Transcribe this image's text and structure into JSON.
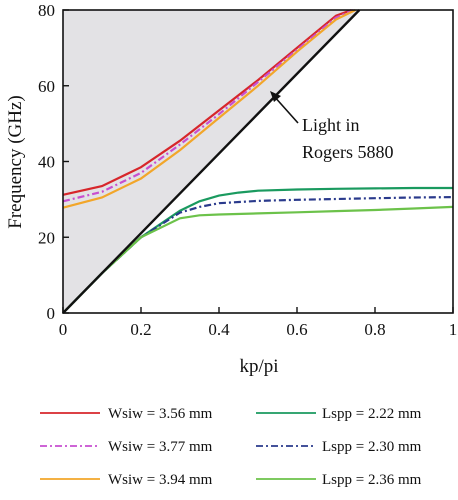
{
  "chart_data": {
    "type": "line",
    "title": "",
    "xlabel": "kp/pi",
    "ylabel": "Frequency (GHz)",
    "xlim": [
      0,
      1
    ],
    "ylim": [
      0,
      80
    ],
    "x_ticks": [
      "0",
      "0.2",
      "0.4",
      "0.6",
      "0.8",
      "1"
    ],
    "y_ticks": [
      "0",
      "20",
      "40",
      "60",
      "80"
    ],
    "grid": false,
    "legend_position": "bottom",
    "light_line": {
      "label_line1": "Light in",
      "label_line2": "Rogers 5880",
      "x": [
        0,
        0.76
      ],
      "y": [
        0,
        80
      ]
    },
    "series": [
      {
        "name": "Wsiw = 3.56 mm",
        "color": "#d7262b",
        "dash": "solid",
        "x": [
          0,
          0.1,
          0.2,
          0.3,
          0.4,
          0.5,
          0.6,
          0.7,
          0.74
        ],
        "y": [
          31.2,
          33.5,
          38.5,
          45.5,
          53.5,
          61.5,
          70,
          78.5,
          80
        ]
      },
      {
        "name": "Lspp = 2.22 mm",
        "color": "#1a9a5f",
        "dash": "solid",
        "x": [
          0,
          0.1,
          0.2,
          0.3,
          0.35,
          0.4,
          0.45,
          0.5,
          0.6,
          0.7,
          0.8,
          0.9,
          1.0
        ],
        "y": [
          0,
          10.5,
          20,
          27,
          29.5,
          31,
          31.8,
          32.3,
          32.6,
          32.8,
          32.9,
          33,
          33
        ]
      },
      {
        "name": "Wsiw = 3.77 mm",
        "color": "#c84fd0",
        "dash": "dashdot",
        "x": [
          0,
          0.1,
          0.2,
          0.3,
          0.4,
          0.5,
          0.6,
          0.7,
          0.745
        ],
        "y": [
          29.5,
          32,
          37,
          44.5,
          52.5,
          61,
          69.5,
          78,
          80
        ]
      },
      {
        "name": "Lspp = 2.30 mm",
        "color": "#2a3a8c",
        "dash": "dashdot",
        "x": [
          0,
          0.1,
          0.2,
          0.3,
          0.35,
          0.4,
          0.5,
          0.6,
          0.7,
          0.8,
          0.9,
          1.0
        ],
        "y": [
          0,
          10.5,
          20,
          26.5,
          28,
          29,
          29.6,
          29.9,
          30.1,
          30.3,
          30.5,
          30.6
        ]
      },
      {
        "name": "Wsiw = 3.94 mm",
        "color": "#f2a62a",
        "dash": "solid",
        "x": [
          0,
          0.1,
          0.2,
          0.3,
          0.4,
          0.5,
          0.6,
          0.7,
          0.75
        ],
        "y": [
          27.8,
          30.5,
          35.5,
          43,
          51.5,
          60,
          69,
          77.5,
          80
        ]
      },
      {
        "name": "Lspp = 2.36 mm",
        "color": "#6cc24a",
        "dash": "solid",
        "x": [
          0,
          0.1,
          0.2,
          0.3,
          0.35,
          0.4,
          0.5,
          0.6,
          0.7,
          0.8,
          0.9,
          1.0
        ],
        "y": [
          0,
          10.5,
          20,
          25,
          25.8,
          26,
          26.3,
          26.6,
          26.9,
          27.2,
          27.6,
          28
        ]
      }
    ]
  }
}
